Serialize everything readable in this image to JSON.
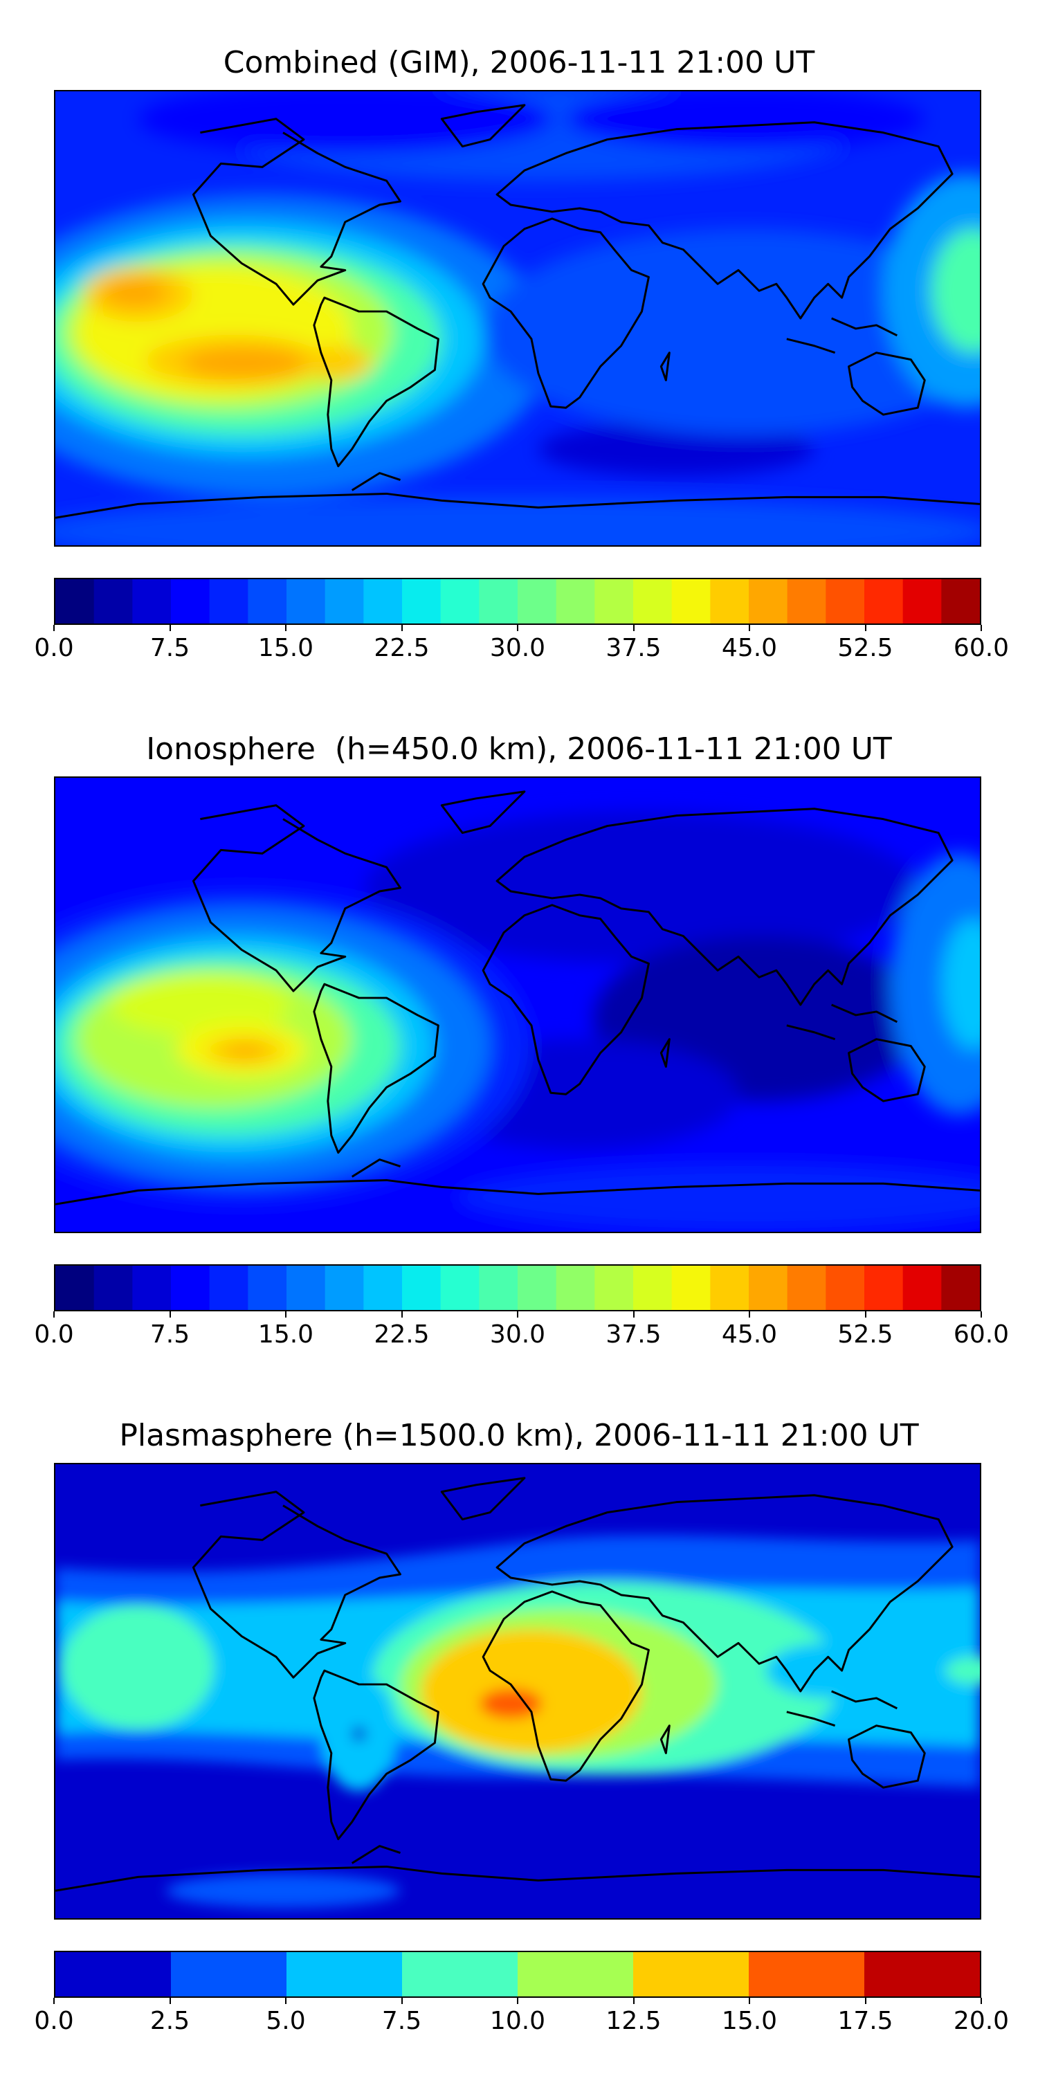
{
  "maps": [
    {
      "title": "Combined (GIM), 2006-11-11 21:00 UT",
      "colorbar": {
        "ticks": [
          "0.0",
          "7.5",
          "15.0",
          "22.5",
          "30.0",
          "37.5",
          "45.0",
          "52.5",
          "60.0"
        ],
        "min": 0,
        "max": 60,
        "levels": 24,
        "colors": [
          "#00007f",
          "#0000a8",
          "#0000d6",
          "#0000ff",
          "#0022ff",
          "#004cff",
          "#0074ff",
          "#009cff",
          "#00c4ff",
          "#08ecee",
          "#26ffd1",
          "#4affad",
          "#6dff8a",
          "#91ff66",
          "#b4ff43",
          "#d7ff1f",
          "#f5f70a",
          "#ffcc00",
          "#ffa700",
          "#ff7c00",
          "#ff5200",
          "#ff2900",
          "#e30000",
          "#a30000"
        ]
      }
    },
    {
      "title": "Ionosphere  (h=450.0 km), 2006-11-11 21:00 UT",
      "colorbar": {
        "ticks": [
          "0.0",
          "7.5",
          "15.0",
          "22.5",
          "30.0",
          "37.5",
          "45.0",
          "52.5",
          "60.0"
        ],
        "min": 0,
        "max": 60,
        "levels": 24,
        "colors": [
          "#00007f",
          "#0000a8",
          "#0000d6",
          "#0000ff",
          "#0022ff",
          "#004cff",
          "#0074ff",
          "#009cff",
          "#00c4ff",
          "#08ecee",
          "#26ffd1",
          "#4affad",
          "#6dff8a",
          "#91ff66",
          "#b4ff43",
          "#d7ff1f",
          "#f5f70a",
          "#ffcc00",
          "#ffa700",
          "#ff7c00",
          "#ff5200",
          "#ff2900",
          "#e30000",
          "#a30000"
        ]
      }
    },
    {
      "title": "Plasmasphere (h=1500.0 km), 2006-11-11 21:00 UT",
      "colorbar": {
        "ticks": [
          "0.0",
          "2.5",
          "5.0",
          "7.5",
          "10.0",
          "12.5",
          "15.0",
          "17.5",
          "20.0"
        ],
        "min": 0,
        "max": 20,
        "levels": 8,
        "colors": [
          "#0000cd",
          "#0055ff",
          "#00c4ff",
          "#4affc0",
          "#a6ff52",
          "#ffcc00",
          "#ff5a00",
          "#c00000"
        ]
      }
    }
  ]
}
